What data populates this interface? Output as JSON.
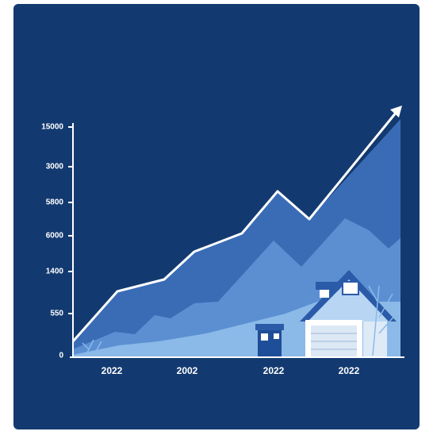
{
  "y_axis_labels": [
    "15000",
    "3000",
    "5800",
    "6000",
    "1400",
    "550",
    "0"
  ],
  "x_axis_labels": [
    "2022",
    "2002",
    "2022",
    "2022"
  ]
}
